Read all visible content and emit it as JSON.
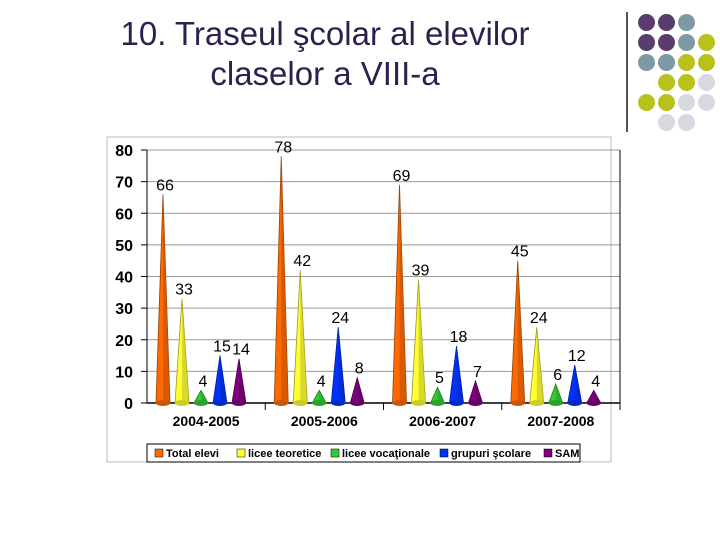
{
  "slide": {
    "title_line1": "10. Traseul şcolar al elevilor",
    "title_line2": "claselor a VIII-a"
  },
  "decor": {
    "dot_grid": [
      [
        "#5a3d6e",
        "#5a3d6e",
        "#7c9aa3",
        "#ffffff"
      ],
      [
        "#5a3d6e",
        "#5a3d6e",
        "#7c9aa3",
        "#b8c21a"
      ],
      [
        "#7c9aa3",
        "#7c9aa3",
        "#b8c21a",
        "#b8c21a"
      ],
      [
        "#ffffff",
        "#b8c21a",
        "#b8c21a",
        "#d8d8e0"
      ],
      [
        "#b8c21a",
        "#b8c21a",
        "#d8d8e0",
        "#d8d8e0"
      ],
      [
        "#ffffff",
        "#d8d8e0",
        "#d8d8e0",
        "#ffffff"
      ]
    ]
  },
  "chart_data": {
    "type": "bar",
    "style": "3d-cones",
    "categories": [
      "2004-2005",
      "2005-2006",
      "2006-2007",
      "2007-2008"
    ],
    "series": [
      {
        "name": "Total elevi",
        "color": "#ff6a00",
        "values": [
          66,
          78,
          69,
          45
        ]
      },
      {
        "name": "licee teoretice",
        "color": "#ffff33",
        "values": [
          33,
          42,
          39,
          24
        ]
      },
      {
        "name": "licee vocaţionale",
        "color": "#33cc33",
        "values": [
          4,
          4,
          5,
          6
        ]
      },
      {
        "name": "grupuri şcolare",
        "color": "#0033ff",
        "values": [
          15,
          24,
          18,
          12
        ]
      },
      {
        "name": "SAM",
        "color": "#800080",
        "values": [
          14,
          8,
          7,
          4
        ]
      }
    ],
    "ylim": [
      0,
      80
    ],
    "yticks": [
      "0",
      "10",
      "20",
      "30",
      "40",
      "50",
      "60",
      "70",
      "80"
    ],
    "grid": true,
    "legend_position": "bottom"
  }
}
